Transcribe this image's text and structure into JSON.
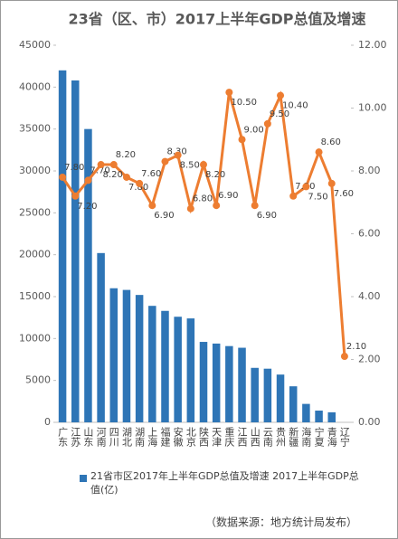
{
  "chart_data": {
    "type": "bar_line",
    "title": "23省（区、市）2017上半年GDP总值及增速",
    "note": "（数据来源：地方统计局发布）",
    "categories": [
      "广东",
      "江苏",
      "山东",
      "河南",
      "四川",
      "湖北",
      "湖南",
      "上海",
      "福建",
      "安徽",
      "北京",
      "陕西",
      "天津",
      "重庆",
      "江西",
      "山西",
      "云南",
      "贵州",
      "新疆",
      "海南",
      "宁夏",
      "青海",
      "辽宁"
    ],
    "series": [
      {
        "name": "21省市区2017年上半年GDP总值及增速 2017上半年GDP总值(亿)",
        "type": "bar",
        "color": "#2e75b6",
        "values": [
          42000,
          40800,
          35000,
          20200,
          16000,
          15800,
          15200,
          13900,
          13300,
          12600,
          12400,
          9600,
          9400,
          9100,
          8900,
          6500,
          6400,
          5700,
          4300,
          2200,
          1400,
          1200,
          null
        ]
      },
      {
        "type": "line",
        "axis": "y2",
        "color": "#ed7d31",
        "values": [
          7.8,
          7.2,
          7.7,
          8.2,
          8.2,
          7.8,
          7.6,
          6.9,
          8.3,
          8.5,
          6.8,
          8.2,
          6.9,
          10.5,
          9.0,
          6.9,
          9.5,
          10.4,
          7.2,
          7.5,
          8.6,
          7.6,
          2.1
        ],
        "value_labels": [
          "7.80",
          "7.20",
          "7.70",
          "8.20",
          "8.20",
          "7.80",
          "7.60",
          "6.90",
          "8.30",
          "8.50",
          "6.80",
          "8.20",
          "6.90",
          "10.50",
          "9.00",
          "6.90",
          "9.50",
          "10.40",
          "7.20",
          "7.50",
          "8.60",
          "7.60",
          "2.10"
        ]
      }
    ],
    "ylim": [
      0,
      45000
    ],
    "yticks": [
      0,
      5000,
      10000,
      15000,
      20000,
      25000,
      30000,
      35000,
      40000,
      45000
    ],
    "y2lim": [
      0,
      12
    ],
    "y2ticks": [
      {
        "value": 0,
        "label": "0.00"
      },
      {
        "value": 2,
        "label": "2.00"
      },
      {
        "value": 4,
        "label": "4.00"
      },
      {
        "value": 6,
        "label": "6.00"
      },
      {
        "value": 8,
        "label": "8.00"
      },
      {
        "value": 10,
        "label": "10.00"
      },
      {
        "value": 12,
        "label": "12.00"
      }
    ],
    "legend": "bottom"
  }
}
